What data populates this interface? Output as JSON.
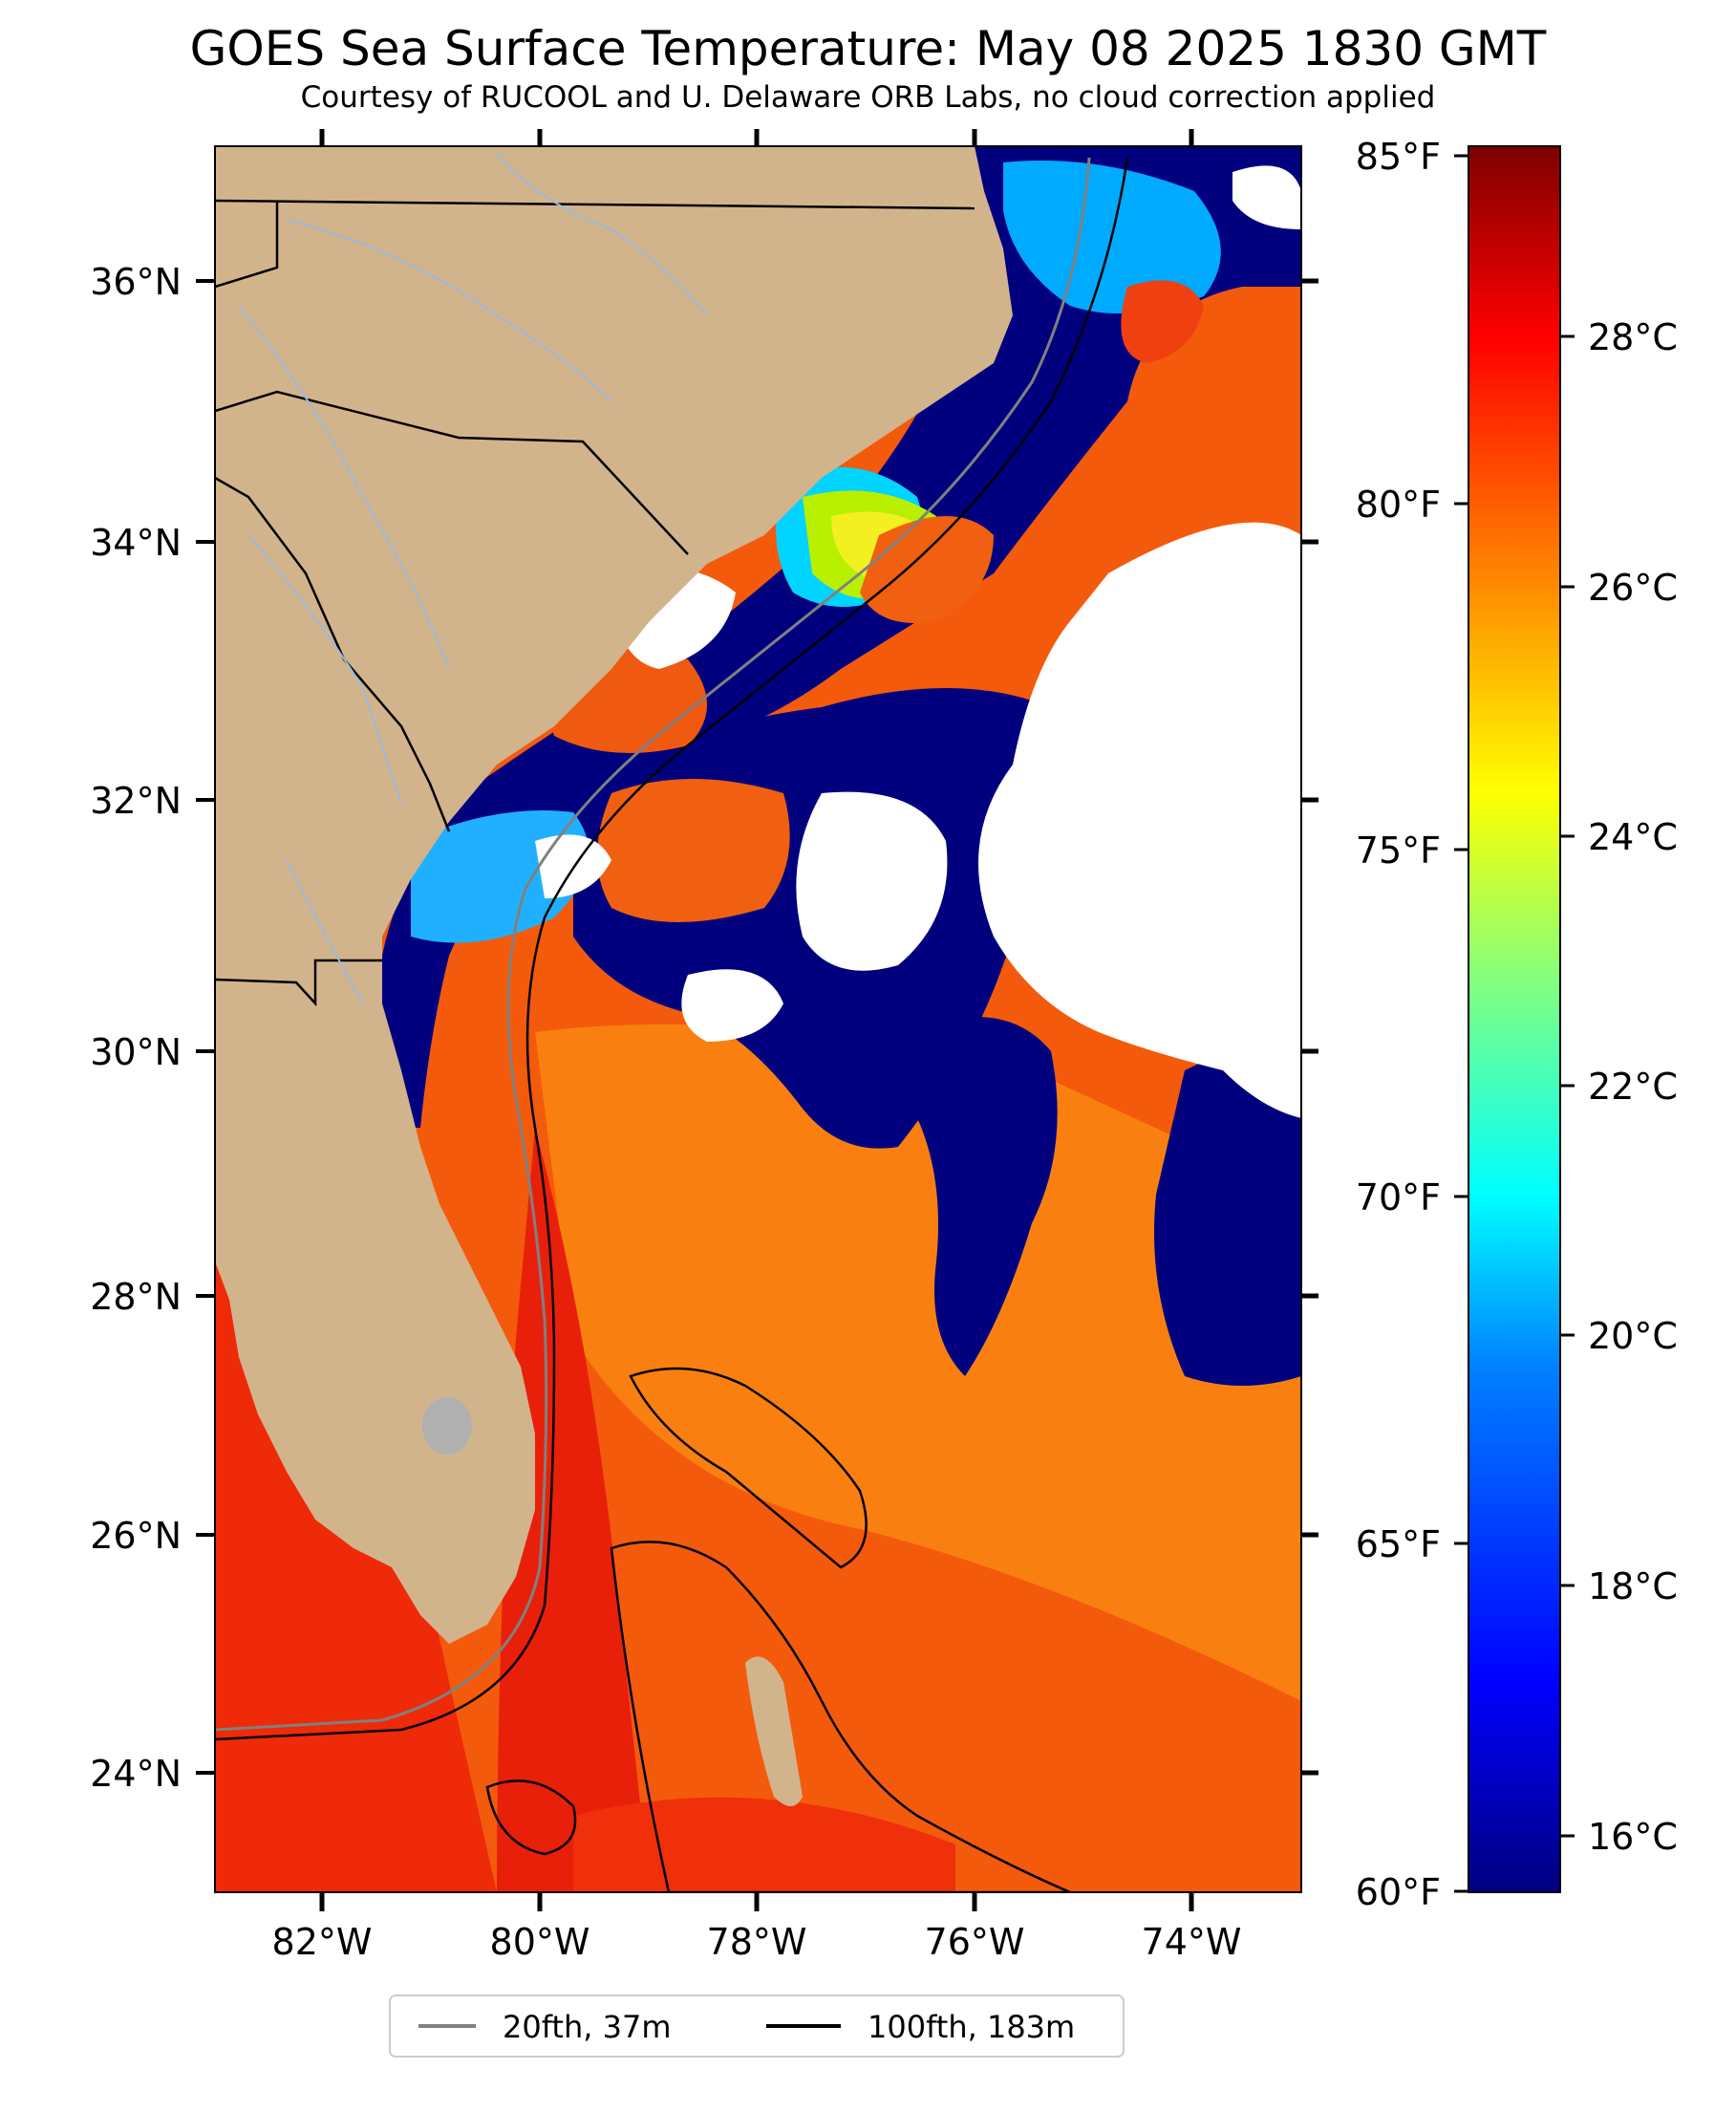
{
  "title": "GOES Sea Surface Temperature: May 08 2025 1830 GMT",
  "subtitle": "Courtesy of RUCOOL and U. Delaware ORB Labs, no cloud correction applied",
  "map": {
    "lon_range": [
      -83.0,
      -73.0
    ],
    "lat_range": [
      23.0,
      37.0
    ],
    "lat_ticks": [
      "36°N",
      "34°N",
      "32°N",
      "30°N",
      "28°N",
      "26°N",
      "24°N"
    ],
    "lon_ticks": [
      "82°W",
      "80°W",
      "78°W",
      "76°W",
      "74°W"
    ]
  },
  "colorbar": {
    "colormap": "jet",
    "colors": [
      "#00007f",
      "#0000ff",
      "#0080ff",
      "#00ffff",
      "#80ff80",
      "#ffff00",
      "#ff8000",
      "#ff0000",
      "#7f0000"
    ],
    "fahrenheit_ticks": [
      "85°F",
      "80°F",
      "75°F",
      "70°F",
      "65°F",
      "60°F"
    ],
    "celsius_ticks": [
      "28°C",
      "26°C",
      "24°C",
      "22°C",
      "20°C",
      "18°C",
      "16°C"
    ]
  },
  "legend": {
    "items": [
      {
        "label": "20fth, 37m",
        "color": "#808080"
      },
      {
        "label": "100fth, 183m",
        "color": "#000000"
      }
    ]
  },
  "colors": {
    "land": "#d2b48c",
    "cloud": "#ffffff",
    "rivers": "#a0b8d8",
    "borders": "#000000"
  }
}
